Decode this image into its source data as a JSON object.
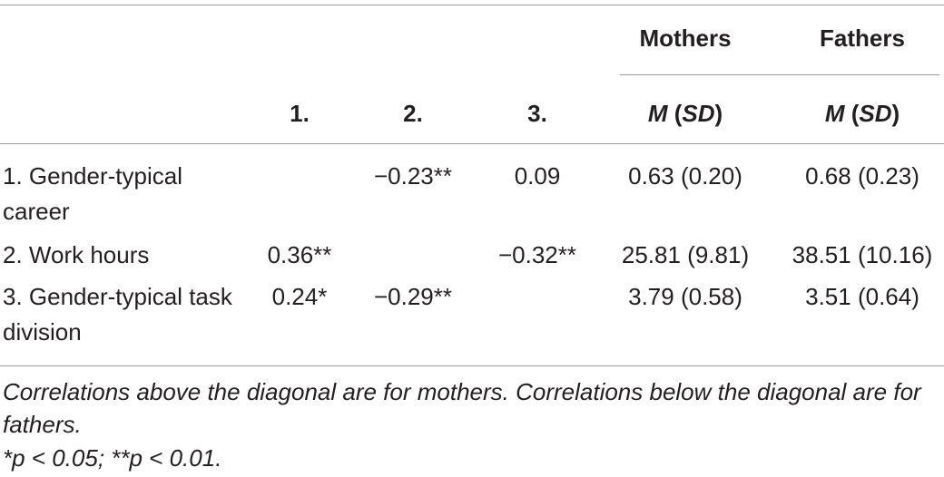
{
  "table": {
    "group_headers": [
      "Mothers",
      "Fathers"
    ],
    "column_headers": [
      [
        {
          "text": "1.",
          "italic": false
        }
      ],
      [
        {
          "text": "2.",
          "italic": false
        }
      ],
      [
        {
          "text": "3.",
          "italic": false
        }
      ],
      [
        {
          "text": "M",
          "italic": true
        },
        {
          "text": " (",
          "italic": false
        },
        {
          "text": "SD",
          "italic": true
        },
        {
          "text": ")",
          "italic": false
        }
      ],
      [
        {
          "text": "M",
          "italic": true
        },
        {
          "text": " (",
          "italic": false
        },
        {
          "text": "SD",
          "italic": true
        },
        {
          "text": ")",
          "italic": false
        }
      ]
    ],
    "rows": [
      [
        "1. Gender-typical career",
        null,
        "−0.23**",
        "0.09",
        "0.63 (0.20)",
        "0.68 (0.23)"
      ],
      [
        "2. Work hours",
        "0.36**",
        null,
        "−0.32**",
        "25.81 (9.81)",
        "38.51 (10.16)"
      ],
      [
        "3. Gender-typical task division",
        "0.24*",
        "−0.29**",
        null,
        "3.79 (0.58)",
        "3.51 (0.64)"
      ]
    ],
    "notes": [
      "Correlations above the diagonal are for mothers. Correlations below the diagonal are for fathers.",
      "*p < 0.05; **p < 0.01."
    ]
  }
}
